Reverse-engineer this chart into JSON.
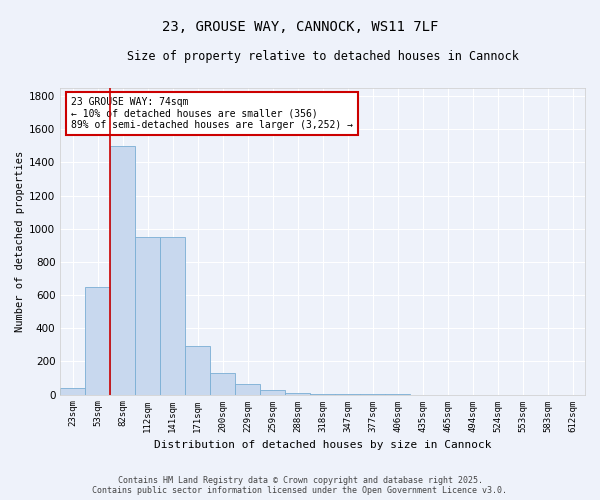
{
  "title": "23, GROUSE WAY, CANNOCK, WS11 7LF",
  "subtitle": "Size of property relative to detached houses in Cannock",
  "xlabel": "Distribution of detached houses by size in Cannock",
  "ylabel": "Number of detached properties",
  "bar_color": "#c8d8ee",
  "bar_edge_color": "#7aaed4",
  "background_color": "#eef2fa",
  "grid_color": "#ffffff",
  "categories": [
    "23sqm",
    "53sqm",
    "82sqm",
    "112sqm",
    "141sqm",
    "171sqm",
    "200sqm",
    "229sqm",
    "259sqm",
    "288sqm",
    "318sqm",
    "347sqm",
    "377sqm",
    "406sqm",
    "435sqm",
    "465sqm",
    "494sqm",
    "524sqm",
    "553sqm",
    "583sqm",
    "612sqm"
  ],
  "values": [
    40,
    650,
    1500,
    950,
    950,
    295,
    130,
    65,
    25,
    10,
    5,
    2,
    2,
    1,
    0,
    0,
    0,
    0,
    0,
    0,
    0
  ],
  "ylim": [
    0,
    1850
  ],
  "yticks": [
    0,
    200,
    400,
    600,
    800,
    1000,
    1200,
    1400,
    1600,
    1800
  ],
  "property_line_x": 1.5,
  "annotation_title": "23 GROUSE WAY: 74sqm",
  "annotation_line1": "← 10% of detached houses are smaller (356)",
  "annotation_line2": "89% of semi-detached houses are larger (3,252) →",
  "annotation_box_color": "#ffffff",
  "annotation_box_edge": "#cc0000",
  "red_line_color": "#cc0000",
  "footer_line1": "Contains HM Land Registry data © Crown copyright and database right 2025.",
  "footer_line2": "Contains public sector information licensed under the Open Government Licence v3.0."
}
